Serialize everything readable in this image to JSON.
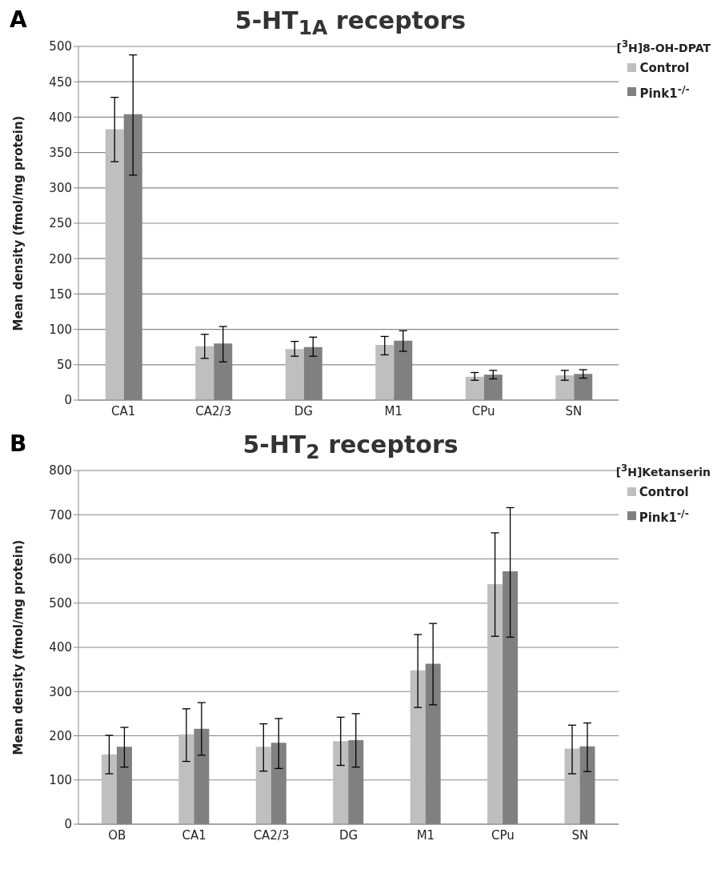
{
  "chart_data": [
    {
      "type": "bar",
      "title": "5-HT$_{1A}$ receptors",
      "ylabel": "Mean density (fmol/mg protein)",
      "legend_title": "[$^{3}$H]8-OH-DPAT",
      "annotations": [
        "A"
      ],
      "categories": [
        "CA1",
        "CA2/3",
        "DG",
        "M1",
        "CPu",
        "SN"
      ],
      "series": [
        {
          "name": "Control",
          "color": "#bfbfbf",
          "values": [
            383,
            76,
            72,
            78,
            33,
            35
          ],
          "errors": [
            [
              337,
              428
            ],
            [
              59,
              93
            ],
            [
              62,
              83
            ],
            [
              64,
              90
            ],
            [
              28,
              39
            ],
            [
              28,
              42
            ]
          ]
        },
        {
          "name": "Pink1$^{-/-}$",
          "color": "#808080",
          "values": [
            404,
            80,
            75,
            84,
            36,
            37
          ],
          "errors": [
            [
              318,
              488
            ],
            [
              54,
              104
            ],
            [
              62,
              89
            ],
            [
              69,
              98
            ],
            [
              30,
              42
            ],
            [
              31,
              43
            ]
          ]
        }
      ],
      "ylim": [
        0,
        500
      ],
      "yticks": [
        0,
        50,
        100,
        150,
        200,
        250,
        300,
        350,
        400,
        450,
        500
      ],
      "grid": "y",
      "legend": "top right"
    },
    {
      "type": "bar",
      "title": "5-HT$_{2}$ receptors",
      "ylabel": "Mean density (fmol/mg protein)",
      "legend_title": "[$^{3}$H]Ketanserin",
      "annotations": [
        "B"
      ],
      "categories": [
        "OB",
        "CA1",
        "CA2/3",
        "DG",
        "M1",
        "CPu",
        "SN"
      ],
      "series": [
        {
          "name": "Control",
          "color": "#bfbfbf",
          "values": [
            158,
            203,
            175,
            188,
            348,
            543,
            171
          ],
          "errors": [
            [
              114,
              201
            ],
            [
              142,
              261
            ],
            [
              120,
              227
            ],
            [
              133,
              242
            ],
            [
              264,
              429
            ],
            [
              425,
              659
            ],
            [
              114,
              224
            ]
          ]
        },
        {
          "name": "Pink1$^{-/-}$",
          "color": "#808080",
          "values": [
            175,
            216,
            184,
            190,
            363,
            572,
            176
          ],
          "errors": [
            [
              129,
              219
            ],
            [
              156,
              275
            ],
            [
              126,
              239
            ],
            [
              129,
              250
            ],
            [
              270,
              454
            ],
            [
              423,
              716
            ],
            [
              119,
              229
            ]
          ]
        }
      ],
      "ylim": [
        0,
        800
      ],
      "yticks": [
        0,
        100,
        200,
        300,
        400,
        500,
        600,
        700,
        800
      ],
      "grid": "y",
      "legend": "top right"
    }
  ]
}
